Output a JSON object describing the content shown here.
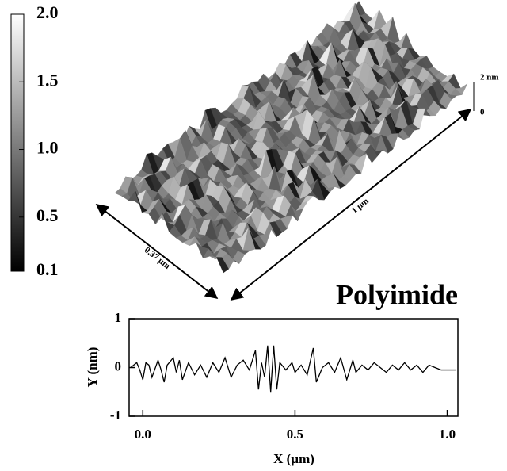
{
  "chart_data": [
    {
      "type": "surface",
      "clim": [
        0.1,
        2
      ],
      "cticks": [
        {
          "value": 2,
          "label": "2.0"
        },
        {
          "value": 1.5,
          "label": "1.5"
        },
        {
          "value": 1,
          "label": "1.0"
        },
        {
          "value": 0.5,
          "label": "0.5"
        },
        {
          "value": 0.1,
          "label": "0.1"
        }
      ],
      "z_scale_labels": [
        "2 nm",
        "0"
      ],
      "length_label": "1 µm",
      "width_label": "0.37 µm"
    },
    {
      "type": "line",
      "title": "Polyimide",
      "xlabel": "X (µm)",
      "ylabel": "Y (nm)",
      "color": "#000000",
      "x": [
        -0.04,
        -0.02,
        -0.01,
        0.0,
        0.01,
        0.02,
        0.03,
        0.05,
        0.06,
        0.07,
        0.08,
        0.1,
        0.11,
        0.12,
        0.13,
        0.15,
        0.17,
        0.19,
        0.21,
        0.23,
        0.25,
        0.27,
        0.29,
        0.31,
        0.33,
        0.35,
        0.37,
        0.38,
        0.39,
        0.4,
        0.41,
        0.42,
        0.43,
        0.44,
        0.45,
        0.47,
        0.49,
        0.5,
        0.52,
        0.54,
        0.56,
        0.57,
        0.59,
        0.61,
        0.63,
        0.65,
        0.67,
        0.69,
        0.7,
        0.72,
        0.74,
        0.76,
        0.78,
        0.8,
        0.82,
        0.84,
        0.86,
        0.88,
        0.9,
        0.92,
        0.94,
        0.96,
        0.98,
        1.0,
        1.03
      ],
      "values": [
        0.0,
        0.1,
        -0.05,
        -0.25,
        0.1,
        0.05,
        -0.2,
        0.15,
        -0.05,
        -0.3,
        0.05,
        0.2,
        -0.1,
        0.15,
        -0.25,
        0.1,
        -0.15,
        0.05,
        -0.2,
        0.1,
        -0.1,
        0.2,
        -0.2,
        0.05,
        0.15,
        -0.05,
        0.35,
        -0.45,
        0.1,
        -0.2,
        0.45,
        -0.5,
        0.45,
        -0.45,
        0.1,
        -0.05,
        0.1,
        -0.1,
        0.05,
        -0.15,
        0.4,
        -0.3,
        0.0,
        0.1,
        -0.1,
        0.2,
        -0.25,
        0.15,
        -0.1,
        0.05,
        -0.05,
        0.1,
        0.0,
        -0.1,
        0.05,
        -0.05,
        0.1,
        -0.05,
        0.05,
        -0.1,
        0.05,
        0.0,
        -0.05,
        -0.05,
        -0.05
      ],
      "xlim": [
        -0.045,
        1.035
      ],
      "ylim": [
        -1,
        1
      ],
      "xticks": [
        {
          "value": 0,
          "label": "0.0"
        },
        {
          "value": 0.5,
          "label": "0.5"
        },
        {
          "value": 1,
          "label": "1.0"
        }
      ],
      "yticks": [
        -1,
        0,
        1
      ]
    }
  ]
}
